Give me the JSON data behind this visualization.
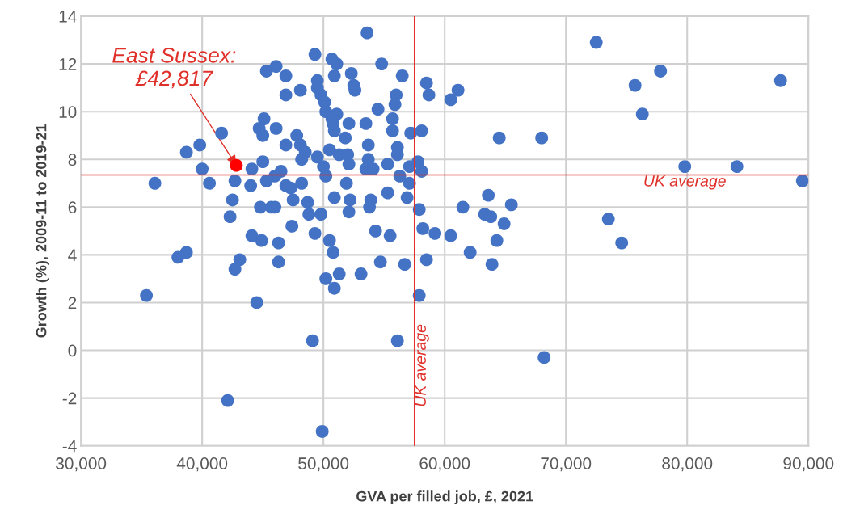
{
  "chart_data": {
    "type": "scatter",
    "xlabel": "GVA per filled job, £, 2021",
    "ylabel": "Growth (%), 2009-11 to 2019-21",
    "series": [
      {
        "color": "#4472c4",
        "x": [
          36100,
          38700,
          39800,
          41600,
          40000,
          40600,
          42700,
          42500,
          42300,
          44100,
          44000,
          45000,
          45300,
          46100,
          45100,
          44700,
          46100,
          45000,
          44800,
          44100,
          35400,
          38000,
          38700,
          43100,
          42700,
          44500,
          42100,
          44900,
          46300,
          46300,
          47400,
          49300,
          50500,
          50800,
          50200,
          51300,
          50900,
          53100,
          54300,
          55500,
          54700,
          56700,
          58200,
          59200,
          60500,
          58500,
          57900,
          49100,
          56100,
          49900,
          53600,
          49300,
          50700,
          51100,
          50900,
          52300,
          52500,
          52600,
          54800,
          56500,
          58500,
          58700,
          60500,
          61100,
          46900,
          46900,
          48100,
          49500,
          49500,
          49800,
          50100,
          50200,
          51100,
          50700,
          50800,
          50900,
          52100,
          51800,
          53500,
          54500,
          56000,
          55900,
          55700,
          55700,
          57200,
          58100,
          46900,
          47800,
          48100,
          48500,
          48200,
          49500,
          50000,
          50200,
          50500,
          51300,
          52000,
          52100,
          53700,
          53700,
          53500,
          54100,
          56100,
          56100,
          55300,
          56300,
          57100,
          57800,
          58100,
          57100,
          46500,
          46900,
          48200,
          47300,
          47500,
          48700,
          48800,
          49800,
          50900,
          51900,
          52200,
          52100,
          53900,
          53800,
          55300,
          56900,
          57900,
          46000,
          45300,
          46000,
          45700,
          72500,
          77800,
          75700,
          76300,
          87700,
          64500,
          68000,
          79800,
          84100,
          89500,
          73500,
          74600,
          63600,
          61500,
          65500,
          63300,
          63800,
          64900,
          64300,
          62100,
          63900,
          68200
        ],
        "values": [
          7.0,
          8.3,
          8.6,
          9.1,
          7.6,
          7.0,
          7.1,
          6.3,
          5.6,
          7.6,
          6.9,
          7.9,
          11.7,
          11.9,
          9.7,
          9.3,
          9.3,
          9.0,
          6.0,
          4.8,
          2.3,
          3.9,
          4.1,
          3.8,
          3.4,
          2.0,
          -2.1,
          4.6,
          4.5,
          3.7,
          5.2,
          4.9,
          4.6,
          4.1,
          3.0,
          3.2,
          2.6,
          3.2,
          5.0,
          4.8,
          3.7,
          3.6,
          5.1,
          4.9,
          4.8,
          3.8,
          2.3,
          0.4,
          0.4,
          -3.4,
          13.3,
          12.4,
          12.2,
          12.0,
          11.5,
          11.6,
          11.1,
          10.9,
          12.0,
          11.5,
          11.2,
          10.7,
          10.5,
          10.9,
          11.5,
          10.7,
          10.9,
          11.3,
          11.0,
          10.7,
          10.4,
          10.0,
          9.9,
          9.7,
          9.5,
          9.2,
          9.5,
          8.9,
          9.5,
          10.1,
          10.7,
          10.3,
          9.7,
          9.2,
          9.1,
          9.2,
          8.6,
          9.0,
          8.6,
          8.3,
          8.0,
          8.1,
          7.7,
          7.3,
          8.4,
          8.2,
          8.2,
          7.8,
          8.6,
          8.0,
          7.6,
          7.6,
          8.5,
          8.2,
          7.8,
          7.3,
          7.7,
          7.9,
          7.5,
          7.0,
          7.5,
          6.9,
          7.0,
          6.8,
          6.3,
          6.2,
          5.7,
          5.7,
          6.4,
          7.0,
          6.3,
          5.8,
          6.3,
          6.0,
          6.6,
          6.4,
          5.9,
          6.0,
          7.1,
          7.3,
          6.0,
          12.9,
          11.7,
          11.1,
          9.9,
          11.3,
          8.9,
          8.9,
          7.7,
          7.7,
          7.1,
          5.5,
          4.5,
          6.5,
          6.0,
          6.1,
          5.7,
          5.6,
          5.3,
          4.6,
          4.1,
          3.6,
          -0.3
        ]
      },
      {
        "color": "#ff0000",
        "x": [
          42817
        ],
        "values": [
          7.75
        ]
      }
    ],
    "annotations": [
      {
        "text": "East Sussex:\n£42,817",
        "x": 42817,
        "y": 7.75
      }
    ],
    "ref_lines": [
      {
        "axis": "x",
        "value": 57500,
        "label": "UK average",
        "color": "#e0302a"
      },
      {
        "axis": "y",
        "value": 7.35,
        "label": "UK average",
        "color": "#e0302a"
      }
    ],
    "xlim": [
      30000,
      90000
    ],
    "xticks": [
      {
        "value": 30000,
        "label": "30,000"
      },
      {
        "value": 40000,
        "label": "40,000"
      },
      {
        "value": 50000,
        "label": "50,000"
      },
      {
        "value": 60000,
        "label": "60,000"
      },
      {
        "value": 70000,
        "label": "70,000"
      },
      {
        "value": 80000,
        "label": "80,000"
      },
      {
        "value": 90000,
        "label": "90,000"
      }
    ],
    "ylim": [
      -4,
      14
    ],
    "yticks": [
      -4,
      -2,
      0,
      2,
      4,
      6,
      8,
      10,
      12,
      14
    ],
    "grid": true,
    "marker": "circle"
  }
}
